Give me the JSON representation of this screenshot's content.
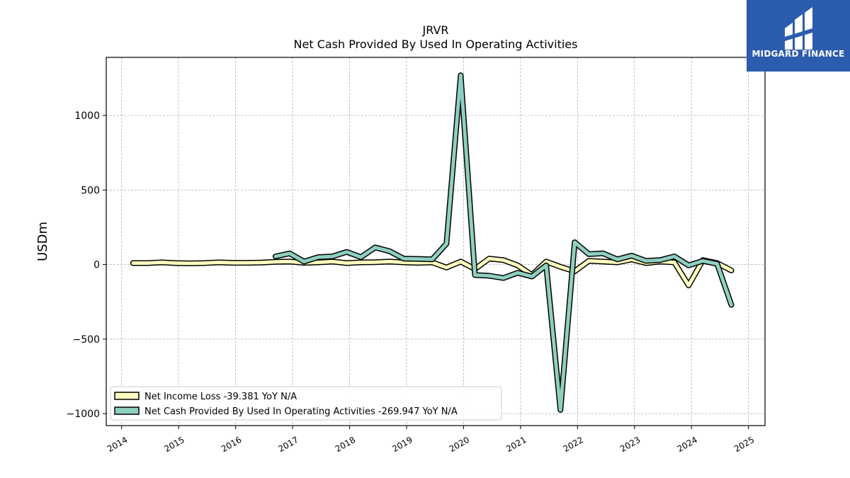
{
  "chart_data": {
    "type": "line",
    "title": "JRVR",
    "subtitle": "Net Cash Provided By Used In Operating Activities",
    "xlabel": "",
    "ylabel": "USDm",
    "xlim": [
      2013.73,
      2025.29
    ],
    "ylim": [
      -1080,
      1390
    ],
    "xticks": [
      "2014",
      "2015",
      "2016",
      "2017",
      "2018",
      "2019",
      "2020",
      "2021",
      "2022",
      "2023",
      "2024",
      "2025"
    ],
    "yticks": [
      -1000,
      -500,
      0,
      500,
      1000
    ],
    "ytick_labels": [
      "−1000",
      "−500",
      "0",
      "500",
      "1000"
    ],
    "grid": true,
    "legend_position": "lower-left",
    "series": [
      {
        "name": "Net Income Loss",
        "legend_label": "Net Income Loss  -39.381 YoY N/A",
        "color": "#ffffbf",
        "x": [
          2014.2,
          2014.45,
          2014.7,
          2014.95,
          2015.2,
          2015.45,
          2015.7,
          2015.95,
          2016.2,
          2016.45,
          2016.7,
          2016.95,
          2017.2,
          2017.45,
          2017.7,
          2017.95,
          2018.2,
          2018.45,
          2018.7,
          2018.95,
          2019.2,
          2019.45,
          2019.7,
          2019.95,
          2020.2,
          2020.45,
          2020.7,
          2020.95,
          2021.2,
          2021.45,
          2021.7,
          2021.95,
          2022.2,
          2022.45,
          2022.7,
          2022.95,
          2023.2,
          2023.45,
          2023.7,
          2023.95,
          2024.2,
          2024.45,
          2024.7
        ],
        "values": [
          10,
          10,
          15,
          10,
          8,
          10,
          15,
          12,
          12,
          14,
          18,
          20,
          12,
          15,
          20,
          10,
          15,
          16,
          20,
          15,
          12,
          15,
          -20,
          20,
          -30,
          40,
          30,
          -5,
          -70,
          20,
          -15,
          -45,
          25,
          20,
          15,
          35,
          10,
          20,
          15,
          -140,
          30,
          10,
          -39.381
        ]
      },
      {
        "name": "Net Cash Provided By Used In Operating Activities",
        "legend_label": "Net Cash Provided By Used In Operating Activities  -269.947 YoY N/A",
        "color": "#8ecfc0",
        "x": [
          2016.7,
          2016.95,
          2017.2,
          2017.45,
          2017.7,
          2017.95,
          2018.2,
          2018.45,
          2018.7,
          2018.95,
          2019.2,
          2019.45,
          2019.7,
          2019.95,
          2020.2,
          2020.45,
          2020.7,
          2020.95,
          2021.2,
          2021.45,
          2021.7,
          2021.95,
          2022.2,
          2022.45,
          2022.7,
          2022.95,
          2023.2,
          2023.45,
          2023.7,
          2023.95,
          2024.2,
          2024.45,
          2024.7
        ],
        "values": [
          55,
          75,
          20,
          50,
          55,
          85,
          50,
          115,
          90,
          40,
          38,
          35,
          140,
          1270,
          -70,
          -75,
          -90,
          -55,
          -80,
          -5,
          -975,
          150,
          70,
          75,
          35,
          60,
          25,
          30,
          55,
          -5,
          25,
          5,
          -269.947
        ]
      }
    ]
  },
  "logo": {
    "text": "MIDGARD FINANCE",
    "background": "#2b5cad"
  },
  "colors": {
    "axis": "#000000",
    "grid": "#b0b0b0"
  }
}
